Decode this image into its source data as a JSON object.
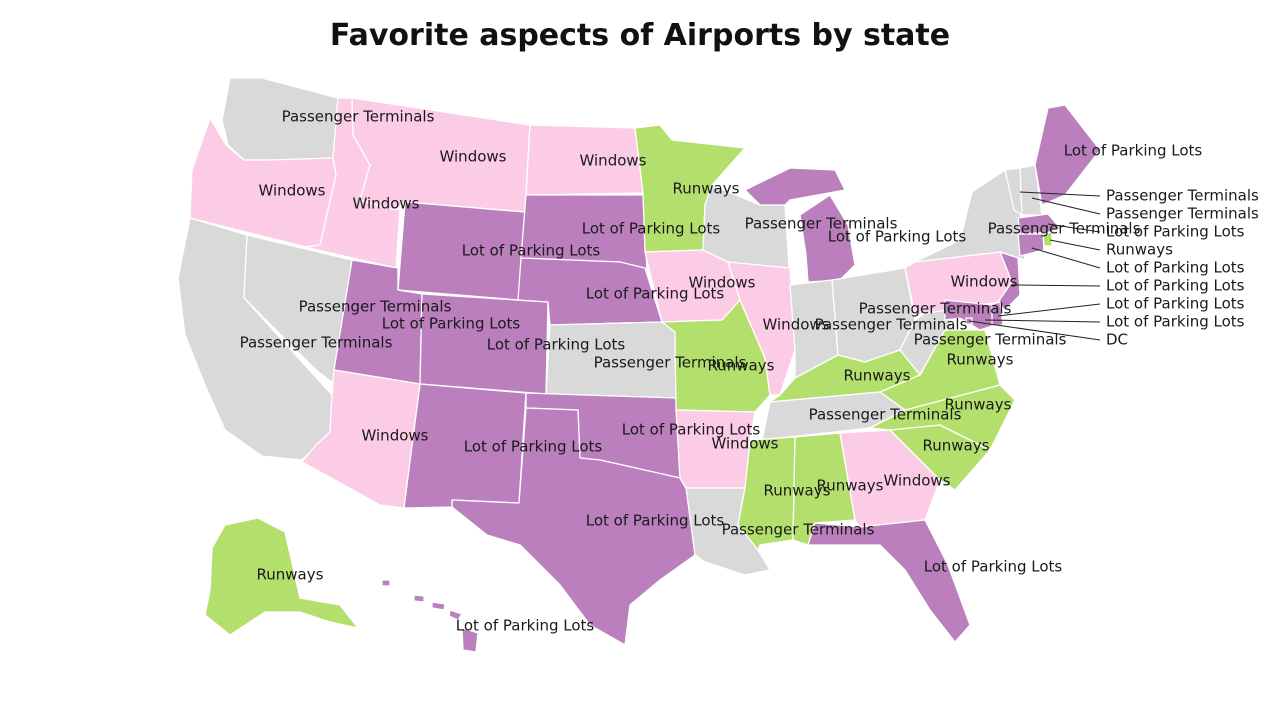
{
  "title": "Favorite aspects of Airports by state",
  "colors": {
    "Windows": "#fccbe6",
    "Passenger Terminals": "#d9d9d9",
    "Lot of Parking Lots": "#bb7fbd",
    "Runways": "#b3e06d"
  },
  "states": {
    "WA": "Passenger Terminals",
    "OR": "Windows",
    "CA": "Passenger Terminals",
    "NV": "Passenger Terminals",
    "ID": "Windows",
    "MT": "Windows",
    "WY": "Lot of Parking Lots",
    "UT": "Lot of Parking Lots",
    "CO": "Lot of Parking Lots",
    "AZ": "Windows",
    "NM": "Lot of Parking Lots",
    "ND": "Windows",
    "SD": "Lot of Parking Lots",
    "NE": "Lot of Parking Lots",
    "KS": "Passenger Terminals",
    "OK": "Lot of Parking Lots",
    "TX": "Lot of Parking Lots",
    "MN": "Runways",
    "IA": "Windows",
    "MO": "Runways",
    "AR": "Windows",
    "LA": "Passenger Terminals",
    "WI": "Passenger Terminals",
    "IL": "Windows",
    "MI": "Lot of Parking Lots",
    "IN": "Passenger Terminals",
    "OH": "Passenger Terminals",
    "KY": "Runways",
    "TN": "Passenger Terminals",
    "MS": "Runways",
    "AL": "Runways",
    "GA": "Windows",
    "FL": "Lot of Parking Lots",
    "SC": "Runways",
    "NC": "Runways",
    "VA": "Runways",
    "WV": "Passenger Terminals",
    "PA": "Windows",
    "NY": "Passenger Terminals",
    "ME": "Lot of Parking Lots",
    "VT": "Passenger Terminals",
    "NH": "Passenger Terminals",
    "MA": "Lot of Parking Lots",
    "RI": "Runways",
    "CT": "Lot of Parking Lots",
    "NJ": "Lot of Parking Lots",
    "DE": "Lot of Parking Lots",
    "MD": "Lot of Parking Lots",
    "DC": "Lot of Parking Lots",
    "AK": "Runways",
    "HI": "Lot of Parking Lots"
  },
  "labels": {
    "WA": "Passenger Terminals",
    "OR": "Windows",
    "CA": "Passenger Terminals",
    "NV": "Passenger Terminals",
    "ID": "Windows",
    "MT": "Windows",
    "WY": "Lot of Parking Lots",
    "UT": "Lot of Parking Lots",
    "CO": "Lot of Parking Lots",
    "AZ": "Windows",
    "NM": "Lot of Parking Lots",
    "ND": "Windows",
    "SD": "Lot of Parking Lots",
    "NE": "Lot of Parking Lots",
    "KS": "Passenger Terminals",
    "OK": "Lot of Parking Lots",
    "TX": "Lot of Parking Lots",
    "MN": "Runways",
    "IA": "Windows",
    "MO": "Runways",
    "AR": "Windows",
    "LA": "Passenger Terminals",
    "WI": "Passenger Terminals",
    "IL": "Windows",
    "MI": "Lot of Parking Lots",
    "IN": "Passenger Terminals",
    "OH": "Passenger Terminals",
    "KY": "Runways",
    "TN": "Passenger Terminals",
    "MS": "Runways",
    "AL": "Runways",
    "GA": "Windows",
    "FL": "Lot of Parking Lots",
    "SC": "Runways",
    "NC": "Runways",
    "VA": "Runways",
    "WV": "Passenger Terminals",
    "PA": "Windows",
    "NY": "Passenger Terminals",
    "ME": "Lot of Parking Lots",
    "AK": "Runways",
    "HI": "Lot of Parking Lots",
    "VT": "Passenger Terminals",
    "NH": "Passenger Terminals",
    "MA": "Lot of Parking Lots",
    "RI": "Runways",
    "CT": "Lot of Parking Lots",
    "NJ": "Lot of Parking Lots",
    "DE": "Lot of Parking Lots",
    "MD": "Lot of Parking Lots",
    "DC": "DC"
  }
}
